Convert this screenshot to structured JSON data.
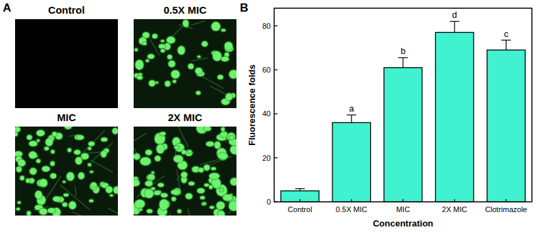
{
  "panels": {
    "a_label": "A",
    "b_label": "B",
    "images": [
      {
        "label": "Control"
      },
      {
        "label": "0.5X MIC"
      },
      {
        "label": "MIC"
      },
      {
        "label": "2X MIC"
      }
    ]
  },
  "chart_data": {
    "type": "bar",
    "x_label": "Concentration",
    "y_label": "Fluorescence folds",
    "categories": [
      "Control",
      "0.5X MIC",
      "MIC",
      "2X MIC",
      "Clotrimazole"
    ],
    "values": [
      5,
      36,
      61,
      77,
      69
    ],
    "errors": [
      1,
      3.5,
      4.5,
      5,
      4.5
    ],
    "significance": [
      null,
      "a",
      "b",
      "d",
      "c"
    ],
    "color": "#40f2cf",
    "ylim": [
      0,
      88
    ],
    "yticks": [
      0,
      20,
      40,
      60,
      80
    ],
    "grid": false
  }
}
